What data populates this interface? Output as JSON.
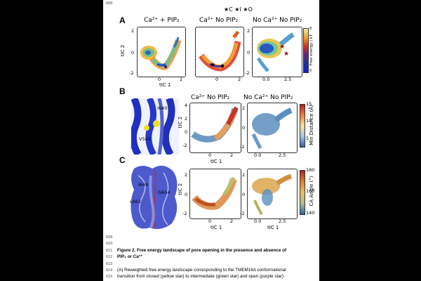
{
  "page_number": "608",
  "line_numbers": [
    "609",
    "610",
    "611",
    "612",
    "613",
    "614",
    "615"
  ],
  "legend_symbols": "★C ★I ★O",
  "panel_a": {
    "label": "A",
    "titles": [
      "Ca²⁺ + PIP₂",
      "Ca²⁺ No PIP₂",
      "No Ca²⁺ No PIP₂"
    ],
    "xlabel": "tIC 1",
    "ylabel": "tIC 2",
    "colorbar_label": "Free energy / kT",
    "colorbar_ticks": [
      "8",
      "7",
      "6",
      "5",
      "4",
      "3",
      "2",
      "1",
      "0"
    ]
  },
  "panel_b": {
    "label": "B",
    "residues": [
      "I640",
      "V543"
    ],
    "titles": [
      "Ca²⁺ No PIP₂",
      "No Ca²⁺ No PIP₂"
    ],
    "xlabel": "tIC 1",
    "ylabel": "tIC 2",
    "colorbar_label": "Min Distance (Å)",
    "colorbar_ticks": [
      "15",
      "10",
      "5"
    ]
  },
  "panel_c": {
    "label": "C",
    "residues": [
      "I646",
      "G654",
      "L662"
    ],
    "xlabel": "tIC 1",
    "ylabel": "tIC 2",
    "colorbar_label": "CA Angle (°)",
    "colorbar_ticks": [
      "180",
      "160",
      "140"
    ]
  },
  "caption": {
    "title_line1": "Figure 2. Free energy landscape of pore opening in the presence and absence of",
    "title_line2": "PIP₂ or Ca²⁺",
    "body_line1": "(A) Reweighted free energy landscape corresponding to the TMEM16A conformational",
    "body_line2": "transition from closed (yellow star) to intermediate (green star) and open (purple star)"
  },
  "chart_data": [
    {
      "type": "heatmap",
      "title": "Ca²⁺ + PIP₂",
      "xlabel": "tIC 1",
      "ylabel": "tIC 2",
      "x_ticks": [
        "0",
        "2"
      ],
      "y_ticks": [
        "2",
        "0",
        "-2"
      ],
      "colorbar": "Free energy / kT",
      "range": [
        0,
        8
      ]
    },
    {
      "type": "heatmap",
      "title": "Ca²⁺ No PIP₂",
      "xlabel": "tIC 1",
      "ylabel": "",
      "x_ticks": [
        "0",
        "2"
      ],
      "y_ticks": [
        "2",
        "0",
        "-2"
      ],
      "colorbar": "Free energy / kT",
      "range": [
        0,
        8
      ]
    },
    {
      "type": "heatmap",
      "title": "No Ca²⁺ No PIP₂",
      "xlabel": "tIC 1",
      "ylabel": "",
      "x_ticks": [
        "0.0",
        "2.5"
      ],
      "y_ticks": [
        "2",
        "0",
        "-2"
      ],
      "colorbar": "Free energy / kT",
      "range": [
        0,
        8
      ]
    },
    {
      "type": "scatter",
      "title": "Ca²⁺ No PIP₂",
      "xlabel": "tIC 1",
      "ylabel": "tIC 2",
      "x_ticks": [
        "0",
        "2"
      ],
      "y_ticks": [
        "4",
        "2",
        "0",
        "-2"
      ],
      "colorbar": "Min Distance (Å)",
      "range": [
        4,
        15
      ]
    },
    {
      "type": "scatter",
      "title": "No Ca²⁺ No PIP₂",
      "xlabel": "tIC 1",
      "ylabel": "",
      "x_ticks": [
        "0.0",
        "2.5"
      ],
      "y_ticks": [
        "2",
        "0",
        "-2"
      ],
      "colorbar": "Min Distance (Å)",
      "range": [
        4,
        15
      ]
    },
    {
      "type": "scatter",
      "title": "",
      "xlabel": "tIC 1",
      "ylabel": "tIC 2",
      "x_ticks": [
        "0",
        "2"
      ],
      "y_ticks": [
        "2",
        "0",
        "-2"
      ],
      "colorbar": "CA Angle (°)",
      "range": [
        140,
        180
      ]
    },
    {
      "type": "scatter",
      "title": "",
      "xlabel": "tIC 1",
      "ylabel": "",
      "x_ticks": [
        "0.0",
        "2.5"
      ],
      "y_ticks": [
        "2",
        "0",
        "-2"
      ],
      "colorbar": "CA Angle (°)",
      "range": [
        140,
        180
      ]
    }
  ]
}
